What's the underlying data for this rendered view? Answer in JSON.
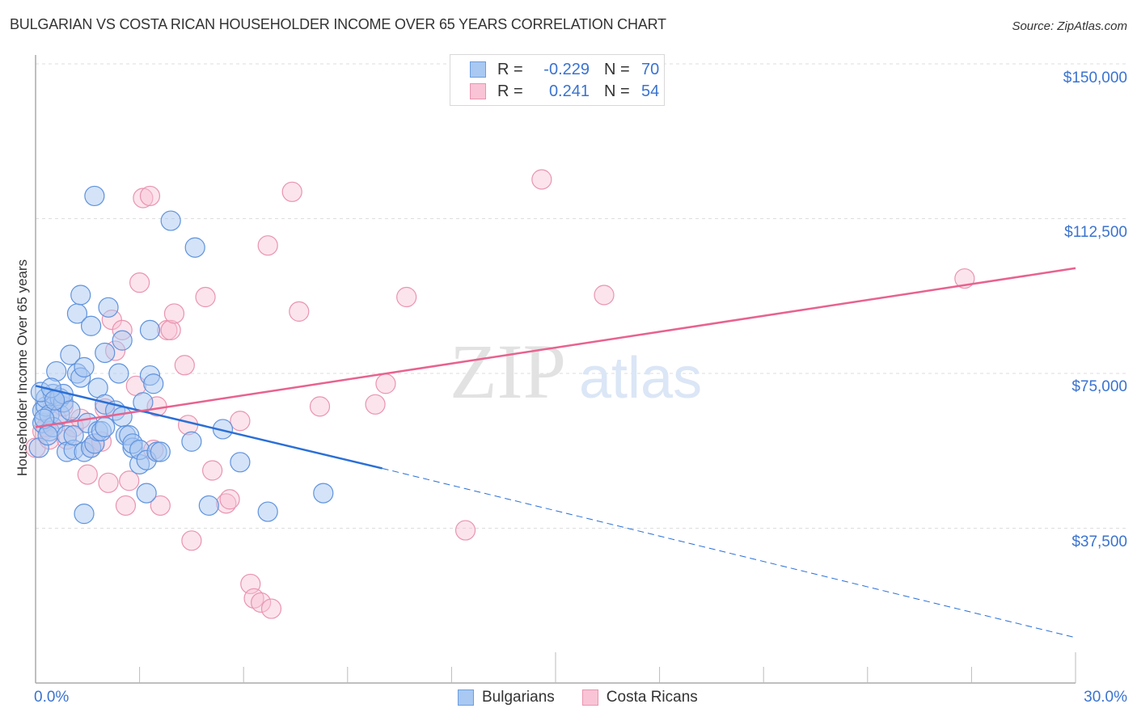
{
  "header": {
    "title": "BULGARIAN VS COSTA RICAN HOUSEHOLDER INCOME OVER 65 YEARS CORRELATION CHART",
    "source": "Source: ZipAtlas.com"
  },
  "legend": {
    "rows": [
      {
        "r_label": "R =",
        "r_value": "-0.229",
        "n_label": "N =",
        "n_value": "70",
        "color": "#a9c8f2",
        "border": "#6a9ee0"
      },
      {
        "r_label": "R =",
        "r_value": "0.241",
        "n_label": "N =",
        "n_value": "54",
        "color": "#f9c4d5",
        "border": "#e994b0"
      }
    ]
  },
  "axes": {
    "ylabel": "Householder Income Over 65 years",
    "x_min_label": "0.0%",
    "x_max_label": "30.0%",
    "y_ticks": [
      "$150,000",
      "$112,500",
      "$75,000",
      "$37,500"
    ]
  },
  "bottom_legend": [
    {
      "label": "Bulgarians",
      "color": "#a9c8f2",
      "border": "#6a9ee0"
    },
    {
      "label": "Costa Ricans",
      "color": "#f9c4d5",
      "border": "#e994b0"
    }
  ],
  "watermark": {
    "zip": "ZIP",
    "atlas": "atlas"
  },
  "colors": {
    "blue": "#3a73d0",
    "blue_line": "#2a6fd6",
    "pink_line": "#e8628f",
    "accent_text": "#3a73d0"
  },
  "chart_data": {
    "type": "scatter",
    "title": "BULGARIAN VS COSTA RICAN HOUSEHOLDER INCOME OVER 65 YEARS CORRELATION CHART",
    "xlabel": "",
    "ylabel": "Householder Income Over 65 years",
    "xlim": [
      0,
      30
    ],
    "ylim": [
      0,
      150000
    ],
    "x_ticks": [
      "0.0%",
      "30.0%"
    ],
    "y_ticks": [
      37500,
      75000,
      112500,
      150000
    ],
    "grid": true,
    "legend_position": "top-center and bottom",
    "series": [
      {
        "name": "Bulgarians",
        "R": -0.229,
        "N": 70,
        "color": "#a9c8f2",
        "trend": {
          "x0": 0,
          "y0": 72000,
          "x1": 10,
          "y1": 52000,
          "dashed_to": {
            "x": 30,
            "y": 11000
          }
        },
        "points": [
          [
            0.1,
            57000
          ],
          [
            0.2,
            63000
          ],
          [
            0.2,
            66000
          ],
          [
            0.3,
            67000
          ],
          [
            0.3,
            69000
          ],
          [
            0.4,
            61000
          ],
          [
            0.4,
            65000
          ],
          [
            0.5,
            70000
          ],
          [
            0.5,
            62000
          ],
          [
            0.6,
            75500
          ],
          [
            0.7,
            69000
          ],
          [
            0.7,
            65000
          ],
          [
            0.8,
            68000
          ],
          [
            0.8,
            70000
          ],
          [
            0.9,
            60000
          ],
          [
            0.9,
            56000
          ],
          [
            1.0,
            66000
          ],
          [
            1.0,
            79500
          ],
          [
            1.1,
            56500
          ],
          [
            1.1,
            60000
          ],
          [
            1.2,
            75000
          ],
          [
            1.2,
            89500
          ],
          [
            1.3,
            94000
          ],
          [
            1.3,
            74000
          ],
          [
            1.4,
            76500
          ],
          [
            1.4,
            56000
          ],
          [
            1.4,
            41000
          ],
          [
            1.5,
            63000
          ],
          [
            1.6,
            86500
          ],
          [
            1.6,
            57000
          ],
          [
            1.7,
            118000
          ],
          [
            1.7,
            58000
          ],
          [
            1.8,
            71500
          ],
          [
            1.8,
            61000
          ],
          [
            1.9,
            61000
          ],
          [
            2.0,
            67500
          ],
          [
            2.0,
            62000
          ],
          [
            2.0,
            80000
          ],
          [
            2.1,
            91000
          ],
          [
            2.3,
            66000
          ],
          [
            2.4,
            75000
          ],
          [
            2.5,
            64500
          ],
          [
            2.5,
            83000
          ],
          [
            2.6,
            60000
          ],
          [
            2.7,
            60000
          ],
          [
            2.8,
            57000
          ],
          [
            2.8,
            58000
          ],
          [
            3.0,
            53000
          ],
          [
            3.0,
            56500
          ],
          [
            3.2,
            54000
          ],
          [
            3.1,
            68000
          ],
          [
            3.2,
            46000
          ],
          [
            3.3,
            85500
          ],
          [
            3.3,
            74500
          ],
          [
            3.4,
            72500
          ],
          [
            3.5,
            56000
          ],
          [
            3.6,
            56000
          ],
          [
            3.9,
            112000
          ],
          [
            4.5,
            58500
          ],
          [
            4.6,
            105500
          ],
          [
            5.0,
            43000
          ],
          [
            5.4,
            61500
          ],
          [
            5.9,
            53500
          ],
          [
            6.7,
            41500
          ],
          [
            8.3,
            46000
          ],
          [
            0.15,
            70500
          ],
          [
            0.25,
            64000
          ],
          [
            0.35,
            60000
          ],
          [
            0.45,
            71500
          ],
          [
            0.55,
            68500
          ]
        ]
      },
      {
        "name": "Costa Ricans",
        "R": 0.241,
        "N": 54,
        "color": "#f9c4d5",
        "trend": {
          "x0": 0,
          "y0": 62000,
          "x1": 30,
          "y1": 100500
        },
        "points": [
          [
            0.0,
            57000
          ],
          [
            0.2,
            61000
          ],
          [
            0.3,
            62000
          ],
          [
            0.4,
            59000
          ],
          [
            0.5,
            68000
          ],
          [
            0.6,
            64000
          ],
          [
            0.8,
            67000
          ],
          [
            0.9,
            59000
          ],
          [
            1.1,
            62000
          ],
          [
            1.3,
            64000
          ],
          [
            1.5,
            50500
          ],
          [
            1.6,
            57000
          ],
          [
            1.7,
            58000
          ],
          [
            1.9,
            58500
          ],
          [
            2.0,
            66500
          ],
          [
            2.1,
            48500
          ],
          [
            2.2,
            88000
          ],
          [
            2.3,
            80500
          ],
          [
            2.5,
            85500
          ],
          [
            2.6,
            43000
          ],
          [
            2.7,
            49000
          ],
          [
            2.9,
            72000
          ],
          [
            3.0,
            97000
          ],
          [
            3.1,
            117500
          ],
          [
            3.3,
            118000
          ],
          [
            3.4,
            56500
          ],
          [
            3.5,
            67000
          ],
          [
            3.6,
            43000
          ],
          [
            3.8,
            85500
          ],
          [
            3.9,
            85500
          ],
          [
            4.0,
            89500
          ],
          [
            4.3,
            77000
          ],
          [
            4.4,
            62500
          ],
          [
            4.5,
            34500
          ],
          [
            4.9,
            93500
          ],
          [
            5.1,
            51500
          ],
          [
            5.5,
            43500
          ],
          [
            5.6,
            44500
          ],
          [
            5.9,
            63500
          ],
          [
            6.2,
            24000
          ],
          [
            6.3,
            20500
          ],
          [
            6.5,
            19500
          ],
          [
            6.8,
            18000
          ],
          [
            6.7,
            106000
          ],
          [
            7.4,
            119000
          ],
          [
            7.6,
            90000
          ],
          [
            8.2,
            67000
          ],
          [
            9.8,
            67500
          ],
          [
            10.1,
            72500
          ],
          [
            10.7,
            93500
          ],
          [
            12.4,
            37000
          ],
          [
            14.6,
            122000
          ],
          [
            16.4,
            94000
          ],
          [
            26.8,
            98000
          ]
        ]
      }
    ]
  }
}
